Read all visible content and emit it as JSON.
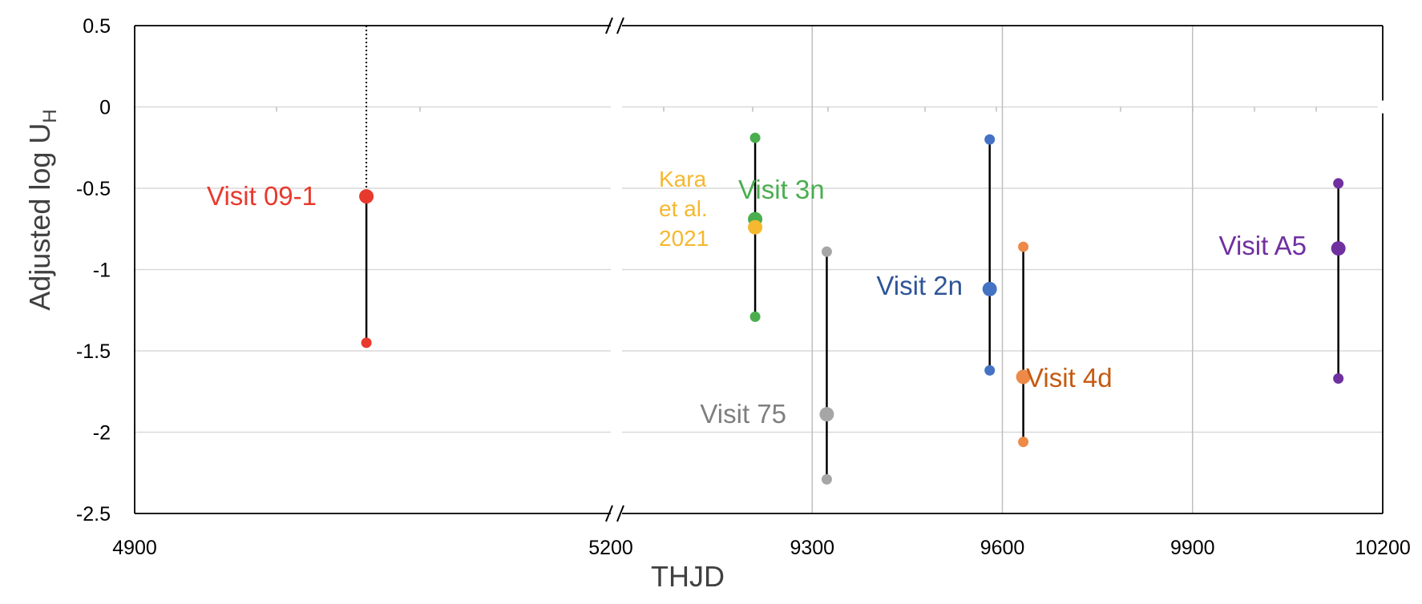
{
  "chart_data": {
    "type": "scatter",
    "title": "",
    "xlabel": "THJD",
    "ylabel": "Adjusted  log U",
    "ylabel_subscript": "H",
    "ylim": [
      -2.5,
      0.5
    ],
    "yticks": [
      "0.5",
      "0",
      "-0.5",
      "-1",
      "-1.5",
      "-2",
      "-2.5"
    ],
    "ytick_values": [
      0.5,
      0,
      -0.5,
      -1,
      -1.5,
      -2,
      -2.5
    ],
    "x_break": true,
    "x_segments": [
      {
        "xlim": [
          4900,
          5200
        ],
        "ticks": [
          "4900",
          "5200"
        ],
        "tick_values": [
          4900,
          5200
        ]
      },
      {
        "xlim": [
          9000,
          10200
        ],
        "ticks": [
          "9300",
          "9600",
          "9900",
          "10200"
        ],
        "tick_values": [
          9300,
          9600,
          9900,
          10200
        ]
      }
    ],
    "grid": true,
    "legend": "none",
    "series": [
      {
        "name": "Visit 09-1",
        "color": "#e8392d",
        "x": 5046,
        "y": -0.55,
        "low": -1.45,
        "high": null,
        "upper_limit_dotted_to": 0.5
      },
      {
        "name": "Visit 3n",
        "color": "#4aae4f",
        "x": 9210,
        "y": -0.69,
        "low": -1.29,
        "high": -0.19
      },
      {
        "name": "Kara\net al.\n2021",
        "color": "#f5b82e",
        "x": 9210,
        "y": -0.74,
        "low": null,
        "high": null
      },
      {
        "name": "Visit 75",
        "color": "#a6a6a6",
        "x": 9323,
        "y": -1.89,
        "low": -2.29,
        "high": -0.89
      },
      {
        "name": "Visit 2n",
        "color": "#4472c4",
        "x": 9580,
        "y": -1.12,
        "low": -1.62,
        "high": -0.2
      },
      {
        "name": "Visit 4d",
        "color": "#ed8a47",
        "x": 9633,
        "y": -1.66,
        "low": -2.06,
        "high": -0.86
      },
      {
        "name": "Visit A5",
        "color": "#7030a0",
        "x": 10130,
        "y": -0.87,
        "low": -1.67,
        "high": -0.47
      }
    ],
    "label_colors": {
      "Visit 09-1": "#e8392d",
      "Visit 3n": "#4aae4f",
      "Kara": "#f5b82e",
      "Visit 75": "#7f7f7f",
      "Visit 2n": "#2f5597",
      "Visit 4d": "#c55a11",
      "Visit A5": "#7030a0"
    }
  }
}
